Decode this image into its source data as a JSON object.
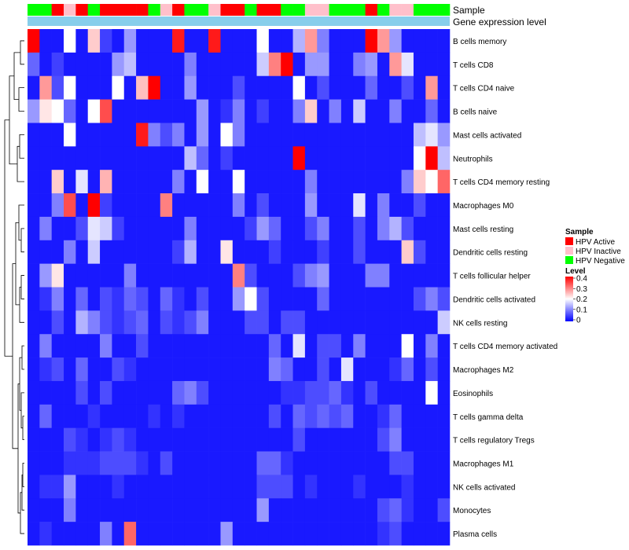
{
  "annotation_labels": {
    "sample": "Sample",
    "gene": "Gene expression level"
  },
  "legend": {
    "sample_title": "Sample",
    "sample_items": [
      {
        "label": "HPV Active",
        "color": "#ff0000"
      },
      {
        "label": "HPV Inactive",
        "color": "#ffc0cb"
      },
      {
        "label": "HPV Negative",
        "color": "#00ff00"
      }
    ],
    "level_title": "Level",
    "level_ticks": [
      "0.4",
      "0.3",
      "0.2",
      "0.1",
      "0"
    ]
  },
  "colors": {
    "low": "#0000ff",
    "mid": "#ffffff",
    "high": "#ff0000",
    "gene_bar": "#87ceeb"
  },
  "chart_data": {
    "type": "heatmap",
    "value_range": [
      0,
      0.4
    ],
    "sample_groups": [
      "N",
      "N",
      "A",
      "I",
      "A",
      "N",
      "A",
      "A",
      "A",
      "A",
      "N",
      "I",
      "A",
      "N",
      "N",
      "I",
      "A",
      "A",
      "N",
      "A",
      "A",
      "N",
      "N",
      "I",
      "I",
      "N",
      "N",
      "N",
      "A",
      "N",
      "I",
      "I",
      "N",
      "N",
      "N"
    ],
    "rows": [
      "B cells memory",
      "T cells CD8",
      "T cells CD4 naive",
      "B cells naive",
      "Mast cells activated",
      "Neutrophils",
      "T cells CD4 memory resting",
      "Macrophages M0",
      "Mast cells resting",
      "Dendritic cells resting",
      "T cells follicular helper",
      "Dendritic cells activated",
      "NK cells resting",
      "T cells CD4 memory activated",
      "Macrophages M2",
      "Eosinophils",
      "T cells gamma delta",
      "T cells regulatory  Tregs",
      "Macrophages M1",
      "NK cells activated",
      "Monocytes",
      "Plasma cells"
    ],
    "values": [
      [
        0.4,
        0.02,
        0.02,
        0.2,
        0.02,
        0.24,
        0.05,
        0.02,
        0.12,
        0.02,
        0.02,
        0.02,
        0.38,
        0.02,
        0.02,
        0.38,
        0.02,
        0.02,
        0.02,
        0.2,
        0.02,
        0.02,
        0.14,
        0.28,
        0.1,
        0.02,
        0.02,
        0.02,
        0.4,
        0.28,
        0.12,
        0.02,
        0.02,
        0.02,
        0.02
      ],
      [
        0.08,
        0.02,
        0.05,
        0.02,
        0.02,
        0.02,
        0.02,
        0.12,
        0.15,
        0.02,
        0.02,
        0.02,
        0.02,
        0.1,
        0.02,
        0.02,
        0.02,
        0.02,
        0.02,
        0.16,
        0.3,
        0.4,
        0.02,
        0.12,
        0.12,
        0.02,
        0.02,
        0.1,
        0.12,
        0.02,
        0.28,
        0.18,
        0.02,
        0.02,
        0.02
      ],
      [
        0.02,
        0.28,
        0.06,
        0.2,
        0.02,
        0.02,
        0.02,
        0.2,
        0.02,
        0.25,
        0.4,
        0.02,
        0.02,
        0.12,
        0.02,
        0.02,
        0.02,
        0.06,
        0.02,
        0.02,
        0.02,
        0.02,
        0.2,
        0.02,
        0.06,
        0.02,
        0.02,
        0.02,
        0.08,
        0.02,
        0.02,
        0.06,
        0.02,
        0.28,
        0.02
      ],
      [
        0.12,
        0.22,
        0.2,
        0.08,
        0.02,
        0.2,
        0.34,
        0.02,
        0.02,
        0.02,
        0.02,
        0.02,
        0.02,
        0.02,
        0.12,
        0.02,
        0.04,
        0.1,
        0.02,
        0.05,
        0.02,
        0.02,
        0.1,
        0.24,
        0.02,
        0.1,
        0.02,
        0.16,
        0.02,
        0.02,
        0.1,
        0.02,
        0.02,
        0.08,
        0.02
      ],
      [
        0.02,
        0.02,
        0.02,
        0.2,
        0.02,
        0.02,
        0.02,
        0.02,
        0.02,
        0.38,
        0.1,
        0.06,
        0.1,
        0.02,
        0.12,
        0.02,
        0.2,
        0.1,
        0.02,
        0.02,
        0.02,
        0.02,
        0.02,
        0.02,
        0.02,
        0.02,
        0.02,
        0.02,
        0.02,
        0.02,
        0.02,
        0.02,
        0.15,
        0.18,
        0.12
      ],
      [
        0.02,
        0.02,
        0.02,
        0.02,
        0.02,
        0.02,
        0.02,
        0.02,
        0.02,
        0.02,
        0.02,
        0.02,
        0.02,
        0.15,
        0.08,
        0.02,
        0.05,
        0.02,
        0.02,
        0.02,
        0.02,
        0.02,
        0.4,
        0.02,
        0.02,
        0.02,
        0.02,
        0.02,
        0.02,
        0.02,
        0.02,
        0.02,
        0.2,
        0.4,
        0.15
      ],
      [
        0.02,
        0.02,
        0.24,
        0.02,
        0.18,
        0.02,
        0.26,
        0.02,
        0.02,
        0.02,
        0.02,
        0.02,
        0.1,
        0.02,
        0.2,
        0.02,
        0.02,
        0.2,
        0.02,
        0.02,
        0.02,
        0.02,
        0.02,
        0.1,
        0.02,
        0.02,
        0.02,
        0.02,
        0.02,
        0.02,
        0.02,
        0.1,
        0.24,
        0.2,
        0.32
      ],
      [
        0.02,
        0.02,
        0.1,
        0.34,
        0.02,
        0.4,
        0.05,
        0.02,
        0.02,
        0.02,
        0.02,
        0.3,
        0.02,
        0.02,
        0.02,
        0.02,
        0.02,
        0.1,
        0.02,
        0.06,
        0.02,
        0.02,
        0.02,
        0.12,
        0.02,
        0.02,
        0.02,
        0.18,
        0.02,
        0.1,
        0.02,
        0.02,
        0.06,
        0.02,
        0.02
      ],
      [
        0.02,
        0.1,
        0.02,
        0.02,
        0.06,
        0.18,
        0.16,
        0.05,
        0.02,
        0.02,
        0.02,
        0.02,
        0.02,
        0.1,
        0.02,
        0.02,
        0.02,
        0.02,
        0.05,
        0.12,
        0.08,
        0.02,
        0.02,
        0.06,
        0.1,
        0.02,
        0.02,
        0.06,
        0.02,
        0.1,
        0.14,
        0.06,
        0.02,
        0.02,
        0.02
      ],
      [
        0.02,
        0.02,
        0.02,
        0.1,
        0.02,
        0.16,
        0.02,
        0.02,
        0.02,
        0.02,
        0.02,
        0.02,
        0.05,
        0.14,
        0.02,
        0.02,
        0.22,
        0.02,
        0.02,
        0.02,
        0.05,
        0.02,
        0.02,
        0.02,
        0.05,
        0.02,
        0.02,
        0.06,
        0.02,
        0.02,
        0.02,
        0.24,
        0.06,
        0.02,
        0.02
      ],
      [
        0.02,
        0.12,
        0.22,
        0.02,
        0.02,
        0.02,
        0.02,
        0.02,
        0.1,
        0.02,
        0.02,
        0.02,
        0.02,
        0.02,
        0.02,
        0.02,
        0.02,
        0.3,
        0.06,
        0.02,
        0.02,
        0.02,
        0.06,
        0.1,
        0.12,
        0.02,
        0.02,
        0.02,
        0.1,
        0.1,
        0.02,
        0.02,
        0.02,
        0.02,
        0.02
      ],
      [
        0.02,
        0.04,
        0.1,
        0.02,
        0.08,
        0.02,
        0.06,
        0.04,
        0.08,
        0.06,
        0.02,
        0.08,
        0.04,
        0.02,
        0.06,
        0.02,
        0.02,
        0.12,
        0.2,
        0.06,
        0.02,
        0.02,
        0.02,
        0.02,
        0.08,
        0.02,
        0.02,
        0.02,
        0.02,
        0.02,
        0.02,
        0.02,
        0.06,
        0.1,
        0.06
      ],
      [
        0.02,
        0.02,
        0.06,
        0.02,
        0.14,
        0.1,
        0.06,
        0.04,
        0.06,
        0.08,
        0.02,
        0.06,
        0.04,
        0.06,
        0.1,
        0.02,
        0.02,
        0.02,
        0.06,
        0.06,
        0.02,
        0.06,
        0.06,
        0.02,
        0.02,
        0.02,
        0.02,
        0.02,
        0.02,
        0.02,
        0.02,
        0.02,
        0.02,
        0.02,
        0.16
      ],
      [
        0.02,
        0.1,
        0.02,
        0.02,
        0.02,
        0.02,
        0.1,
        0.02,
        0.02,
        0.06,
        0.02,
        0.02,
        0.02,
        0.02,
        0.02,
        0.02,
        0.02,
        0.02,
        0.02,
        0.02,
        0.08,
        0.02,
        0.18,
        0.02,
        0.06,
        0.06,
        0.02,
        0.1,
        0.02,
        0.02,
        0.02,
        0.2,
        0.02,
        0.1,
        0.02
      ],
      [
        0.02,
        0.04,
        0.06,
        0.02,
        0.08,
        0.02,
        0.02,
        0.06,
        0.04,
        0.02,
        0.02,
        0.02,
        0.02,
        0.02,
        0.02,
        0.02,
        0.02,
        0.02,
        0.02,
        0.02,
        0.1,
        0.08,
        0.02,
        0.02,
        0.06,
        0.02,
        0.18,
        0.02,
        0.02,
        0.02,
        0.04,
        0.08,
        0.02,
        0.06,
        0.02
      ],
      [
        0.02,
        0.02,
        0.02,
        0.02,
        0.06,
        0.02,
        0.06,
        0.02,
        0.02,
        0.02,
        0.02,
        0.02,
        0.08,
        0.1,
        0.06,
        0.02,
        0.02,
        0.02,
        0.02,
        0.02,
        0.02,
        0.04,
        0.04,
        0.06,
        0.06,
        0.08,
        0.04,
        0.02,
        0.06,
        0.02,
        0.02,
        0.02,
        0.02,
        0.2,
        0.02
      ],
      [
        0.02,
        0.08,
        0.02,
        0.02,
        0.02,
        0.04,
        0.02,
        0.02,
        0.02,
        0.02,
        0.04,
        0.02,
        0.04,
        0.02,
        0.02,
        0.02,
        0.02,
        0.02,
        0.02,
        0.02,
        0.06,
        0.02,
        0.08,
        0.06,
        0.08,
        0.06,
        0.08,
        0.02,
        0.02,
        0.04,
        0.08,
        0.02,
        0.02,
        0.02,
        0.02
      ],
      [
        0.02,
        0.02,
        0.02,
        0.06,
        0.04,
        0.02,
        0.04,
        0.06,
        0.04,
        0.02,
        0.02,
        0.02,
        0.02,
        0.02,
        0.02,
        0.02,
        0.02,
        0.02,
        0.02,
        0.02,
        0.02,
        0.02,
        0.06,
        0.02,
        0.02,
        0.02,
        0.02,
        0.02,
        0.02,
        0.06,
        0.1,
        0.02,
        0.02,
        0.02,
        0.02
      ],
      [
        0.02,
        0.02,
        0.02,
        0.04,
        0.04,
        0.04,
        0.06,
        0.06,
        0.06,
        0.04,
        0.02,
        0.06,
        0.02,
        0.02,
        0.02,
        0.02,
        0.02,
        0.02,
        0.02,
        0.08,
        0.08,
        0.04,
        0.02,
        0.02,
        0.02,
        0.02,
        0.02,
        0.02,
        0.02,
        0.02,
        0.06,
        0.06,
        0.02,
        0.02,
        0.02
      ],
      [
        0.02,
        0.04,
        0.04,
        0.12,
        0.02,
        0.02,
        0.02,
        0.04,
        0.02,
        0.02,
        0.02,
        0.02,
        0.02,
        0.02,
        0.02,
        0.02,
        0.02,
        0.02,
        0.02,
        0.06,
        0.06,
        0.06,
        0.02,
        0.04,
        0.02,
        0.02,
        0.02,
        0.04,
        0.02,
        0.02,
        0.02,
        0.04,
        0.02,
        0.02,
        0.02
      ],
      [
        0.02,
        0.02,
        0.02,
        0.1,
        0.02,
        0.02,
        0.02,
        0.02,
        0.02,
        0.02,
        0.02,
        0.02,
        0.02,
        0.02,
        0.02,
        0.02,
        0.02,
        0.02,
        0.02,
        0.12,
        0.02,
        0.02,
        0.02,
        0.02,
        0.02,
        0.02,
        0.02,
        0.02,
        0.02,
        0.06,
        0.08,
        0.04,
        0.02,
        0.02,
        0.06
      ],
      [
        0.02,
        0.04,
        0.02,
        0.02,
        0.02,
        0.02,
        0.1,
        0.02,
        0.32,
        0.02,
        0.02,
        0.02,
        0.02,
        0.02,
        0.02,
        0.02,
        0.12,
        0.02,
        0.02,
        0.02,
        0.02,
        0.02,
        0.02,
        0.02,
        0.02,
        0.02,
        0.02,
        0.02,
        0.02,
        0.04,
        0.06,
        0.02,
        0.02,
        0.02,
        0.02
      ]
    ]
  }
}
